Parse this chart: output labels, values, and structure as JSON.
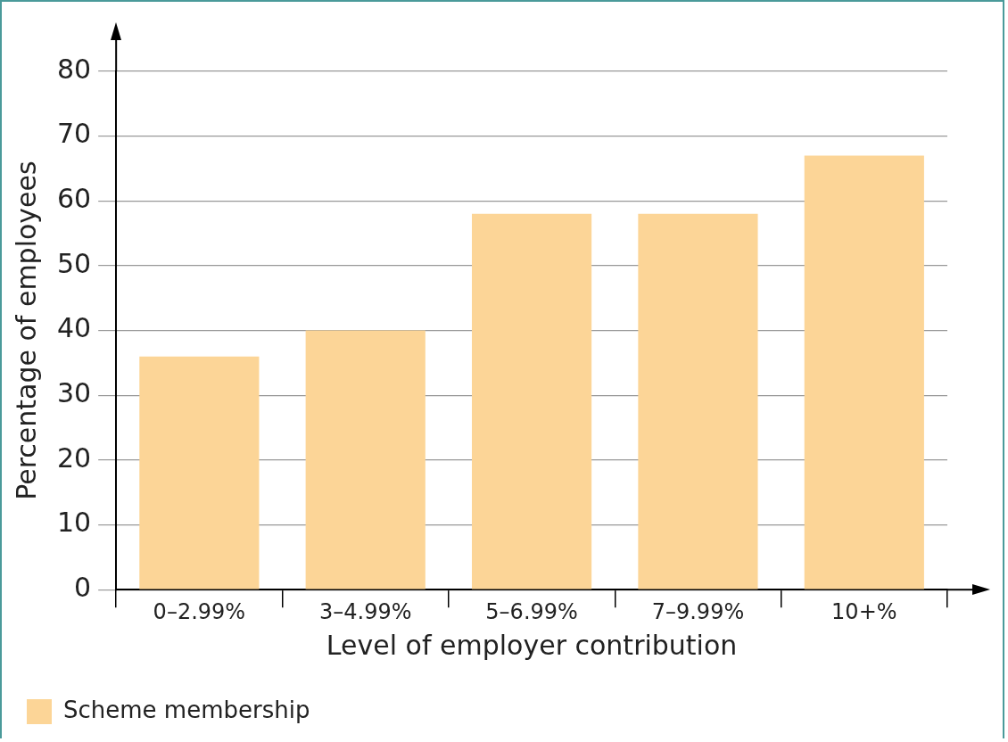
{
  "chart_data": {
    "type": "bar",
    "xlabel": "Level of employer contribution",
    "ylabel": "Percentage of employees",
    "categories": [
      "0–2.99%",
      "3–4.99%",
      "5–6.99%",
      "7–9.99%",
      "10+%"
    ],
    "series": [
      {
        "name": "Scheme membership",
        "color": "#fcd597",
        "values": [
          36,
          40,
          58,
          58,
          67
        ]
      }
    ],
    "ylim": [
      0,
      80
    ],
    "yticks": [
      0,
      10,
      20,
      30,
      40,
      50,
      60,
      70,
      80
    ],
    "grid": "y",
    "legend": "bottom left"
  }
}
